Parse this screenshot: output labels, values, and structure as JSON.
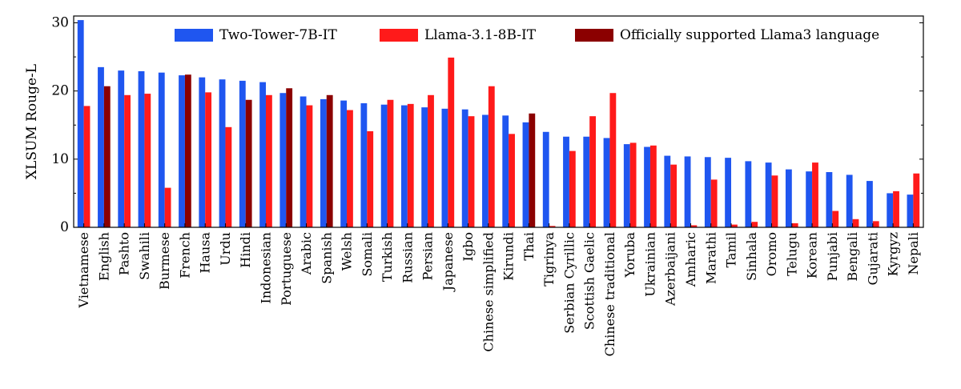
{
  "chart_data": {
    "type": "bar",
    "ylabel": "XLSUM Rouge-L",
    "xlabel": "",
    "ylim": [
      0,
      31
    ],
    "yticks": [
      0,
      10,
      20,
      30
    ],
    "legend_position": "top-right",
    "colors": {
      "two_tower": "#1f56f0",
      "llama": "#ff1a1a",
      "llama_official": "#8b0000"
    },
    "legend": [
      {
        "label": "Two-Tower-7B-IT",
        "color": "#1f56f0"
      },
      {
        "label": "Llama-3.1-8B-IT",
        "color": "#ff1a1a"
      },
      {
        "label": "Officially supported Llama3 language",
        "color": "#8b0000"
      }
    ],
    "categories": [
      "Vietnamese",
      "English",
      "Pashto",
      "Swahili",
      "Burmese",
      "French",
      "Hausa",
      "Urdu",
      "Hindi",
      "Indonesian",
      "Portuguese",
      "Arabic",
      "Spanish",
      "Welsh",
      "Somali",
      "Turkish",
      "Russian",
      "Persian",
      "Japanese",
      "Igbo",
      "Chinese simplified",
      "Kirundi",
      "Thai",
      "Tigrinya",
      "Serbian Cyrillic",
      "Scottish Gaelic",
      "Chinese traditional",
      "Yoruba",
      "Ukrainian",
      "Azerbaijani",
      "Amharic",
      "Marathi",
      "Tamil",
      "Sinhala",
      "Oromo",
      "Telugu",
      "Korean",
      "Punjabi",
      "Bengali",
      "Gujarati",
      "Kyrgyz",
      "Nepali"
    ],
    "official_llama3": [
      false,
      true,
      false,
      false,
      false,
      true,
      false,
      false,
      true,
      false,
      true,
      false,
      true,
      false,
      false,
      false,
      false,
      false,
      false,
      false,
      false,
      false,
      true,
      false,
      false,
      false,
      false,
      false,
      false,
      false,
      false,
      false,
      false,
      false,
      false,
      false,
      false,
      false,
      false,
      false,
      false,
      false
    ],
    "series": [
      {
        "name": "Two-Tower-7B-IT",
        "values": [
          30.4,
          23.5,
          23.0,
          22.9,
          22.7,
          22.3,
          22.0,
          21.7,
          21.5,
          21.3,
          19.7,
          19.2,
          18.8,
          18.6,
          18.2,
          18.0,
          17.9,
          17.6,
          17.4,
          17.3,
          16.5,
          16.4,
          15.4,
          14.0,
          13.3,
          13.3,
          13.1,
          12.2,
          11.8,
          10.5,
          10.4,
          10.3,
          10.2,
          9.7,
          9.5,
          8.5,
          8.2,
          8.1,
          7.7,
          6.8,
          5.0,
          4.8
        ]
      },
      {
        "name": "Llama-3.1-8B-IT",
        "values": [
          17.8,
          20.7,
          19.4,
          19.6,
          5.8,
          22.4,
          19.8,
          14.7,
          18.7,
          19.4,
          20.4,
          17.9,
          19.4,
          17.2,
          14.1,
          18.7,
          18.1,
          19.4,
          24.9,
          16.3,
          20.7,
          13.7,
          16.7,
          0.2,
          11.2,
          16.3,
          19.7,
          12.4,
          12.0,
          9.2,
          0.3,
          7.0,
          0.4,
          0.8,
          7.6,
          0.6,
          9.5,
          2.4,
          1.2,
          0.9,
          5.3,
          7.9
        ]
      }
    ]
  }
}
